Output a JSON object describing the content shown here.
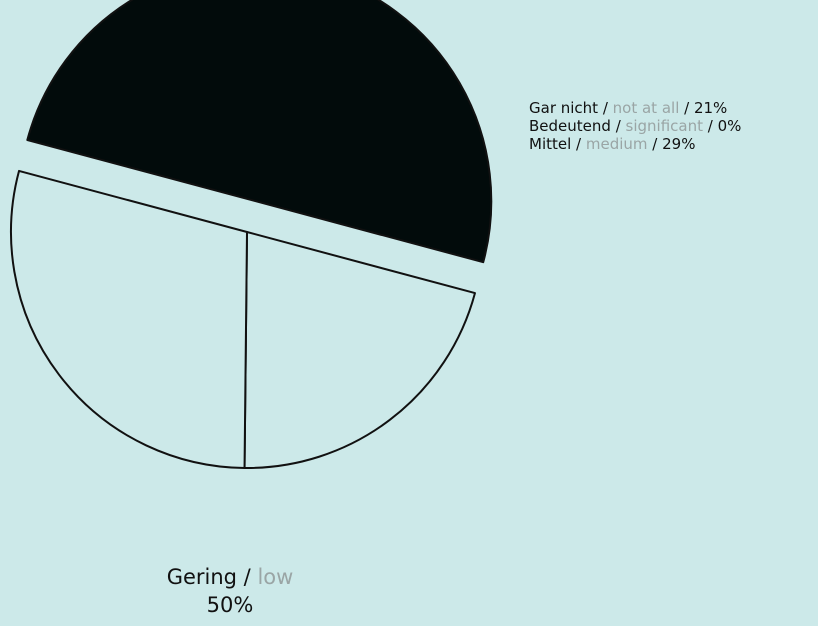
{
  "chart_data": {
    "type": "pie",
    "slices": [
      {
        "de": "Gar nicht",
        "en": "not at all",
        "value": 21,
        "value_label": "21%",
        "fill": "#cce9e9"
      },
      {
        "de": "Bedeutend",
        "en": "significant",
        "value": 0,
        "value_label": "0%",
        "fill": "#cce9e9"
      },
      {
        "de": "Mittel",
        "en": "medium",
        "value": 29,
        "value_label": "29%",
        "fill": "#cce9e9"
      },
      {
        "de": "Gering",
        "en": "low",
        "value": 50,
        "value_label": "50%",
        "fill": "#020b0b",
        "exploded": true
      }
    ],
    "legend_position": "top-right",
    "separator": " / "
  },
  "colors": {
    "background": "#cce9e9",
    "stroke": "#111111",
    "english_text": "#9aa5a5"
  }
}
